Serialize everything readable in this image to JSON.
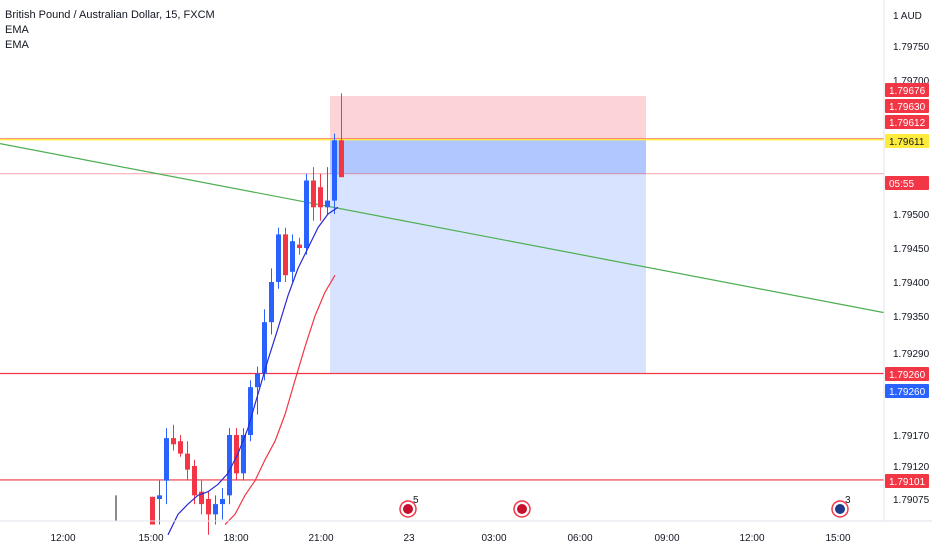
{
  "legend": {
    "title": "British Pound / Australian Dollar, 15, FXCM",
    "indicators": [
      "EMA",
      "EMA"
    ]
  },
  "currency": "AUD",
  "chart_data": {
    "type": "candlestick",
    "symbol": "GBPAUD",
    "timeframe": "15",
    "source": "FXCM",
    "y_ticks": [
      "1.79750",
      "1.79700",
      "1.79500",
      "1.79450",
      "1.79400",
      "1.79350",
      "1.79290",
      "1.79170",
      "1.79120",
      "1.79075"
    ],
    "x_ticks": [
      "12:00",
      "15:00",
      "18:00",
      "21:00",
      "23",
      "03:00",
      "06:00",
      "09:00",
      "12:00",
      "15:00"
    ],
    "candles": [
      {
        "o": 1.79078,
        "h": 1.79078,
        "l": 1.7905,
        "c": 1.7905
      },
      {
        "o": 1.79075,
        "h": 1.791,
        "l": 1.7905,
        "c": 1.7908
      },
      {
        "o": 1.791,
        "h": 1.7918,
        "l": 1.7907,
        "c": 1.79165
      },
      {
        "o": 1.79165,
        "h": 1.79185,
        "l": 1.79145,
        "c": 1.79155
      },
      {
        "o": 1.7916,
        "h": 1.7917,
        "l": 1.79135,
        "c": 1.7914
      },
      {
        "o": 1.7914,
        "h": 1.7916,
        "l": 1.791,
        "c": 1.79115
      },
      {
        "o": 1.7912,
        "h": 1.7913,
        "l": 1.7907,
        "c": 1.7908
      },
      {
        "o": 1.79085,
        "h": 1.791,
        "l": 1.7906,
        "c": 1.7907
      },
      {
        "o": 1.79075,
        "h": 1.79085,
        "l": 1.7904,
        "c": 1.7906
      },
      {
        "o": 1.7906,
        "h": 1.7908,
        "l": 1.7905,
        "c": 1.7907
      },
      {
        "o": 1.7907,
        "h": 1.7909,
        "l": 1.79055,
        "c": 1.79075
      },
      {
        "o": 1.7908,
        "h": 1.7918,
        "l": 1.7907,
        "c": 1.7917
      },
      {
        "o": 1.7917,
        "h": 1.7918,
        "l": 1.791,
        "c": 1.7911
      },
      {
        "o": 1.7911,
        "h": 1.7918,
        "l": 1.791,
        "c": 1.7917
      },
      {
        "o": 1.7917,
        "h": 1.7925,
        "l": 1.7916,
        "c": 1.7924
      },
      {
        "o": 1.7924,
        "h": 1.7927,
        "l": 1.792,
        "c": 1.7926
      },
      {
        "o": 1.7926,
        "h": 1.7936,
        "l": 1.7925,
        "c": 1.7934
      },
      {
        "o": 1.7934,
        "h": 1.7942,
        "l": 1.7932,
        "c": 1.794
      },
      {
        "o": 1.794,
        "h": 1.7948,
        "l": 1.7939,
        "c": 1.7947
      },
      {
        "o": 1.7947,
        "h": 1.7948,
        "l": 1.794,
        "c": 1.7941
      },
      {
        "o": 1.79415,
        "h": 1.7947,
        "l": 1.794,
        "c": 1.7946
      },
      {
        "o": 1.79455,
        "h": 1.79465,
        "l": 1.7944,
        "c": 1.7945
      },
      {
        "o": 1.7945,
        "h": 1.7956,
        "l": 1.7944,
        "c": 1.7955
      },
      {
        "o": 1.7955,
        "h": 1.7957,
        "l": 1.7949,
        "c": 1.7951
      },
      {
        "o": 1.7954,
        "h": 1.7956,
        "l": 1.7949,
        "c": 1.7951
      },
      {
        "o": 1.7951,
        "h": 1.7957,
        "l": 1.795,
        "c": 1.7952
      },
      {
        "o": 1.7952,
        "h": 1.7962,
        "l": 1.795,
        "c": 1.7961
      },
      {
        "o": 1.7961,
        "h": 1.7968,
        "l": 1.79555,
        "c": 1.79555
      }
    ],
    "ema_fast": [
      1.7904,
      1.7906,
      1.7907,
      1.7908,
      1.79085,
      1.79095,
      1.7911,
      1.7914,
      1.7918,
      1.7923,
      1.7928,
      1.7933,
      1.7938,
      1.7942,
      1.7945,
      1.7948,
      1.795,
      1.7951
    ],
    "ema_slow": [
      1.7905,
      1.7906,
      1.7908,
      1.791,
      1.7913,
      1.7916,
      1.792,
      1.7925,
      1.793,
      1.7935,
      1.79385,
      1.7941
    ],
    "trendline": {
      "start": 1.79605,
      "end": 1.79355
    },
    "position": {
      "type": "short",
      "entry": 1.79611,
      "stop": 1.79676,
      "target": 1.7926
    },
    "horizontal_lines": [
      1.79612,
      1.7926,
      1.79101
    ],
    "price_tags": [
      {
        "label": "1.79676",
        "color": "#f23645",
        "text_color": "#ffffff"
      },
      {
        "label": "1.79630",
        "color": "#f23645",
        "text_color": "#ffffff"
      },
      {
        "label": "1.79612",
        "color": "#f23645",
        "text_color": "#ffffff"
      },
      {
        "label": "1.79611",
        "color": "#ffeb3b",
        "text_color": "#131722"
      },
      {
        "label": "05:55",
        "color": "#f23645",
        "text_color": "#ffffff"
      },
      {
        "label": "1.79260",
        "color": "#f23645",
        "text_color": "#ffffff"
      },
      {
        "label": "1.79260",
        "color": "#2962ff",
        "text_color": "#ffffff"
      },
      {
        "label": "1.79101",
        "color": "#f23645",
        "text_color": "#ffffff"
      }
    ],
    "events": [
      {
        "icon": "uk-flag-icon",
        "badge": "5"
      },
      {
        "icon": "uk-flag-icon",
        "badge": ""
      },
      {
        "icon": "au-flag-icon",
        "badge": "3"
      }
    ],
    "colors": {
      "up": "#2962ff",
      "down": "#f23645",
      "ema_fast": "#2a2ad0",
      "ema_slow": "#f23645",
      "trendline": "#4caf50",
      "line_yellow": "#ffeb3b"
    }
  }
}
